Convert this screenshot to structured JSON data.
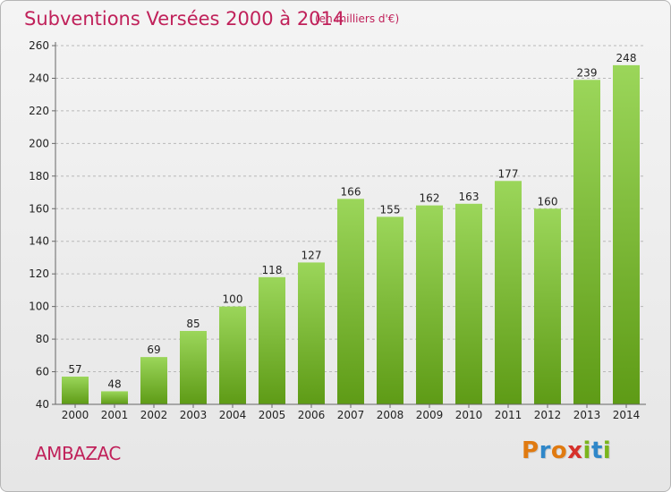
{
  "header": {
    "title": "Subventions Versées 2000 à 2014",
    "unit_note": "(en milliers d'€)"
  },
  "footer": {
    "place": "AMBAZAC",
    "brand": {
      "text": "Proxiti",
      "letters": [
        {
          "char": "P",
          "color": "#e07a10"
        },
        {
          "char": "r",
          "color": "#2f87c9"
        },
        {
          "char": "o",
          "color": "#e07a10"
        },
        {
          "char": "x",
          "color": "#d6312b"
        },
        {
          "char": "i",
          "color": "#7ab51d"
        },
        {
          "char": "t",
          "color": "#2f87c9"
        },
        {
          "char": "i",
          "color": "#7ab51d"
        }
      ]
    }
  },
  "colors": {
    "title": "#c0215a",
    "bar_top": "#9bd65a",
    "bar_bottom": "#5e9b16",
    "grid": "#b8b8b8",
    "axis": "#666666"
  },
  "chart_data": {
    "type": "bar",
    "title": "Subventions Versées 2000 à 2014",
    "subtitle": "(en milliers d'€)",
    "xlabel": "",
    "ylabel": "",
    "categories": [
      "2000",
      "2001",
      "2002",
      "2003",
      "2004",
      "2005",
      "2006",
      "2007",
      "2008",
      "2009",
      "2010",
      "2011",
      "2012",
      "2013",
      "2014"
    ],
    "values": [
      57,
      48,
      69,
      85,
      100,
      118,
      127,
      166,
      155,
      162,
      163,
      177,
      160,
      239,
      248
    ],
    "ylim": [
      40,
      260
    ],
    "yticks": [
      40,
      60,
      80,
      100,
      120,
      140,
      160,
      180,
      200,
      220,
      240,
      260
    ],
    "grid": true,
    "grid_style": "dashed horizontal",
    "data_labels": true,
    "legend": "none"
  }
}
